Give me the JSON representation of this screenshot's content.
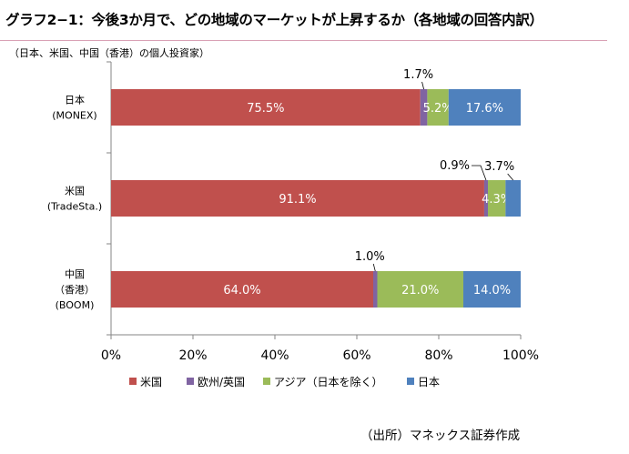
{
  "title": "グラフ2−1：今後3か月で、どの地域のマーケットが上昇するか（各地域の回答内訳）",
  "subtitle": "（日本、米国、中国（香港）の個人投資家）",
  "source": "（出所）マネックス証券作成",
  "chart_data": {
    "type": "bar",
    "orientation": "horizontal",
    "stacked": "percent",
    "categories": [
      [
        "日本",
        "(MONEX)"
      ],
      [
        "米国",
        "(TradeSta.)"
      ],
      [
        "中国",
        "（香港）",
        "(BOOM)"
      ]
    ],
    "series": [
      {
        "name": "米国",
        "color": "#c0504d",
        "values": [
          75.5,
          91.1,
          64.0
        ],
        "labels": [
          "75.5%",
          "91.1%",
          "64.0%"
        ]
      },
      {
        "name": "欧州/英国",
        "color": "#8064a2",
        "values": [
          1.7,
          0.9,
          1.0
        ],
        "labels": [
          "1.7%",
          "0.9%",
          "1.0%"
        ]
      },
      {
        "name": "アジア（日本を除く）",
        "color": "#9bbb59",
        "values": [
          5.2,
          4.3,
          21.0
        ],
        "labels": [
          "5.2%",
          "4.3%",
          "21.0%"
        ]
      },
      {
        "name": "日本",
        "color": "#4f81bd",
        "values": [
          17.6,
          3.7,
          14.0
        ],
        "labels": [
          "17.6%",
          "3.7%",
          "14.0%"
        ]
      }
    ],
    "xlim": [
      0,
      100
    ],
    "xticks": [
      "0%",
      "20%",
      "40%",
      "60%",
      "80%",
      "100%"
    ],
    "grid": false,
    "legend_position": "bottom"
  }
}
